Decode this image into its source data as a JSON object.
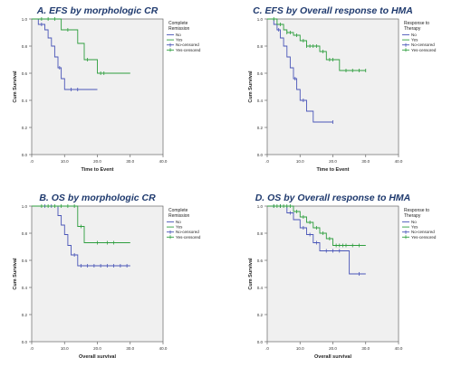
{
  "chart_data": [
    {
      "type": "line",
      "title": "A. EFS by morphologic  CR",
      "xlabel": "Time to Event",
      "ylabel": "Cum Survival",
      "xlim": [
        0,
        40
      ],
      "ylim": [
        0,
        1
      ],
      "xticks": [
        ".0",
        "10.0",
        "20.0",
        "30.0",
        "40.0"
      ],
      "yticks": [
        "0.0",
        "0.2",
        "0.4",
        "0.6",
        "0.8",
        "1.0"
      ],
      "legend_title": [
        "Complete",
        "Remission"
      ],
      "legend": [
        "No",
        "Yes",
        "No-censored",
        "Yes-censored"
      ],
      "series": [
        {
          "name": "No",
          "color": "#4a56b8",
          "steps": [
            [
              0,
              1.0
            ],
            [
              2,
              0.96
            ],
            [
              4,
              0.92
            ],
            [
              5,
              0.86
            ],
            [
              6,
              0.8
            ],
            [
              7,
              0.72
            ],
            [
              8,
              0.64
            ],
            [
              9,
              0.56
            ],
            [
              10,
              0.48
            ],
            [
              20,
              0.48
            ]
          ],
          "censored": [
            [
              3,
              0.96
            ],
            [
              8.5,
              0.64
            ],
            [
              12,
              0.48
            ],
            [
              14,
              0.48
            ]
          ]
        },
        {
          "name": "Yes",
          "color": "#2e9e3e",
          "steps": [
            [
              0,
              1.0
            ],
            [
              9,
              0.92
            ],
            [
              14,
              0.82
            ],
            [
              16,
              0.7
            ],
            [
              20,
              0.6
            ],
            [
              30,
              0.6
            ]
          ],
          "censored": [
            [
              3,
              1.0
            ],
            [
              5,
              1.0
            ],
            [
              7,
              1.0
            ],
            [
              11,
              0.92
            ],
            [
              17,
              0.7
            ],
            [
              21,
              0.6
            ],
            [
              22,
              0.6
            ]
          ]
        }
      ]
    },
    {
      "type": "line",
      "title": "C. EFS by Overall response to HMA",
      "xlabel": "Time to Event",
      "ylabel": "Cum Survival",
      "xlim": [
        0,
        40
      ],
      "ylim": [
        0,
        1
      ],
      "xticks": [
        ".0",
        "10.0",
        "20.0",
        "30.0",
        "40.0"
      ],
      "yticks": [
        "0.0",
        "0.2",
        "0.4",
        "0.6",
        "0.8",
        "1.0"
      ],
      "legend_title": [
        "Response to",
        "Therapy"
      ],
      "legend": [
        "No",
        "Yes",
        "No-censored",
        "Yes-censored"
      ],
      "series": [
        {
          "name": "No",
          "color": "#4a56b8",
          "steps": [
            [
              0,
              1.0
            ],
            [
              2,
              0.96
            ],
            [
              3,
              0.92
            ],
            [
              4,
              0.86
            ],
            [
              5,
              0.8
            ],
            [
              6,
              0.72
            ],
            [
              7,
              0.64
            ],
            [
              8,
              0.56
            ],
            [
              9,
              0.48
            ],
            [
              10,
              0.4
            ],
            [
              12,
              0.32
            ],
            [
              14,
              0.24
            ],
            [
              20,
              0.24
            ]
          ],
          "censored": [
            [
              3.5,
              0.92
            ],
            [
              8.5,
              0.56
            ],
            [
              11,
              0.4
            ],
            [
              20,
              0.24
            ]
          ]
        },
        {
          "name": "Yes",
          "color": "#2e9e3e",
          "steps": [
            [
              0,
              1.0
            ],
            [
              3,
              0.96
            ],
            [
              5,
              0.92
            ],
            [
              6,
              0.9
            ],
            [
              8,
              0.88
            ],
            [
              10,
              0.84
            ],
            [
              12,
              0.8
            ],
            [
              16,
              0.76
            ],
            [
              18,
              0.7
            ],
            [
              22,
              0.62
            ],
            [
              30,
              0.62
            ]
          ],
          "censored": [
            [
              2,
              1.0
            ],
            [
              4,
              0.96
            ],
            [
              6,
              0.9
            ],
            [
              7,
              0.9
            ],
            [
              9,
              0.88
            ],
            [
              11,
              0.84
            ],
            [
              12,
              0.8
            ],
            [
              13,
              0.8
            ],
            [
              14,
              0.8
            ],
            [
              15,
              0.8
            ],
            [
              17,
              0.76
            ],
            [
              19,
              0.7
            ],
            [
              20,
              0.7
            ],
            [
              24,
              0.62
            ],
            [
              26,
              0.62
            ],
            [
              28,
              0.62
            ],
            [
              30,
              0.62
            ]
          ]
        }
      ]
    },
    {
      "type": "line",
      "title": "B. OS by morphologic  CR",
      "xlabel": "Overall survival",
      "ylabel": "Cum Survival",
      "xlim": [
        0,
        40
      ],
      "ylim": [
        0,
        1
      ],
      "xticks": [
        ".0",
        "10.0",
        "20.0",
        "30.0",
        "40.0"
      ],
      "yticks": [
        "0.0",
        "0.2",
        "0.4",
        "0.6",
        "0.8",
        "1.0"
      ],
      "legend_title": [
        "Complete",
        "Remission"
      ],
      "legend": [
        "No",
        "Yes",
        "No-censored",
        "Yes-censored"
      ],
      "series": [
        {
          "name": "No",
          "color": "#4a56b8",
          "steps": [
            [
              0,
              1.0
            ],
            [
              8,
              0.93
            ],
            [
              9,
              0.86
            ],
            [
              10,
              0.79
            ],
            [
              11,
              0.71
            ],
            [
              12,
              0.64
            ],
            [
              14,
              0.56
            ],
            [
              30,
              0.56
            ]
          ],
          "censored": [
            [
              4,
              1.0
            ],
            [
              6,
              1.0
            ],
            [
              13,
              0.64
            ],
            [
              15,
              0.56
            ],
            [
              17,
              0.56
            ],
            [
              19,
              0.56
            ],
            [
              21,
              0.56
            ],
            [
              23,
              0.56
            ],
            [
              25,
              0.56
            ],
            [
              27,
              0.56
            ],
            [
              29,
              0.56
            ]
          ]
        },
        {
          "name": "Yes",
          "color": "#2e9e3e",
          "steps": [
            [
              0,
              1.0
            ],
            [
              14,
              0.85
            ],
            [
              16,
              0.73
            ],
            [
              30,
              0.73
            ]
          ],
          "censored": [
            [
              3,
              1.0
            ],
            [
              5,
              1.0
            ],
            [
              7,
              1.0
            ],
            [
              9,
              1.0
            ],
            [
              11,
              1.0
            ],
            [
              13,
              1.0
            ],
            [
              15,
              0.85
            ],
            [
              20,
              0.73
            ],
            [
              23,
              0.73
            ],
            [
              25,
              0.73
            ]
          ]
        }
      ]
    },
    {
      "type": "line",
      "title": "D. OS by Overall response to HMA",
      "xlabel": "Overall survival",
      "ylabel": "Cum Survival",
      "xlim": [
        0,
        40
      ],
      "ylim": [
        0,
        1
      ],
      "xticks": [
        ".0",
        "10.0",
        "20.0",
        "30.0",
        "40.0"
      ],
      "yticks": [
        "0.0",
        "0.2",
        "0.4",
        "0.6",
        "0.8",
        "1.0"
      ],
      "legend_title": [
        "Response to",
        "Therapy"
      ],
      "legend": [
        "No",
        "Yes",
        "No-censored",
        "Yes-censored"
      ],
      "series": [
        {
          "name": "No",
          "color": "#4a56b8",
          "steps": [
            [
              0,
              1.0
            ],
            [
              6,
              0.95
            ],
            [
              8,
              0.9
            ],
            [
              10,
              0.84
            ],
            [
              12,
              0.79
            ],
            [
              14,
              0.73
            ],
            [
              16,
              0.67
            ],
            [
              24,
              0.67
            ],
            [
              25,
              0.5
            ],
            [
              30,
              0.5
            ]
          ],
          "censored": [
            [
              2,
              1.0
            ],
            [
              4,
              1.0
            ],
            [
              7,
              0.95
            ],
            [
              11,
              0.84
            ],
            [
              13,
              0.79
            ],
            [
              15,
              0.73
            ],
            [
              18,
              0.67
            ],
            [
              20,
              0.67
            ],
            [
              22,
              0.67
            ],
            [
              28,
              0.5
            ]
          ]
        },
        {
          "name": "Yes",
          "color": "#2e9e3e",
          "steps": [
            [
              0,
              1.0
            ],
            [
              8,
              0.96
            ],
            [
              10,
              0.92
            ],
            [
              12,
              0.88
            ],
            [
              14,
              0.84
            ],
            [
              16,
              0.8
            ],
            [
              18,
              0.76
            ],
            [
              20,
              0.71
            ],
            [
              30,
              0.71
            ]
          ],
          "censored": [
            [
              2,
              1.0
            ],
            [
              3,
              1.0
            ],
            [
              4,
              1.0
            ],
            [
              5,
              1.0
            ],
            [
              6,
              1.0
            ],
            [
              7,
              1.0
            ],
            [
              9,
              0.96
            ],
            [
              11,
              0.92
            ],
            [
              13,
              0.88
            ],
            [
              15,
              0.84
            ],
            [
              17,
              0.8
            ],
            [
              19,
              0.76
            ],
            [
              21,
              0.71
            ],
            [
              22,
              0.71
            ],
            [
              23,
              0.71
            ],
            [
              24,
              0.71
            ],
            [
              26,
              0.71
            ],
            [
              28,
              0.71
            ]
          ]
        }
      ]
    }
  ]
}
